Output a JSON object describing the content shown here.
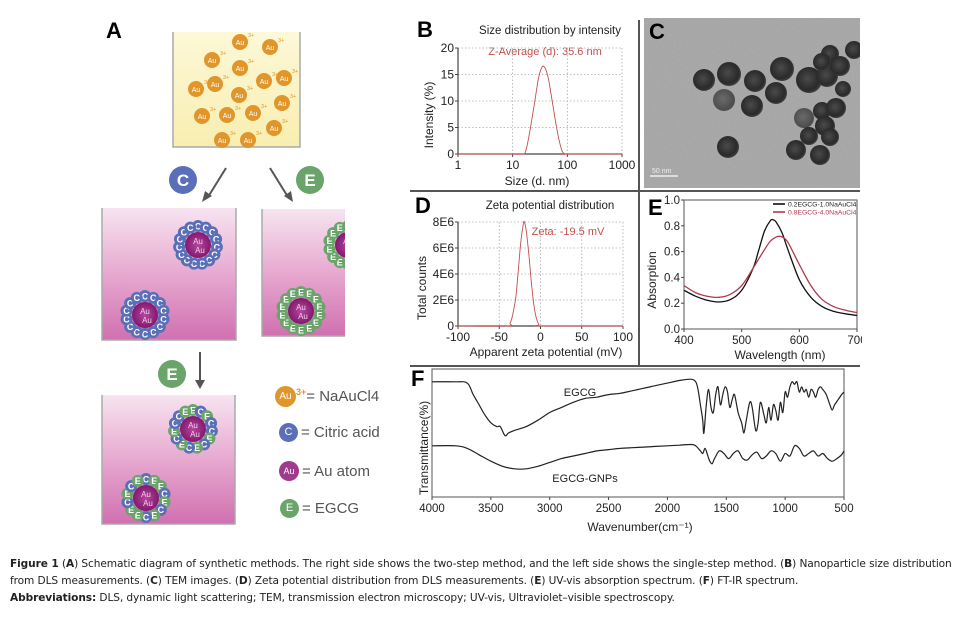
{
  "figure": {
    "panels": {
      "A": {
        "letter": "A",
        "title": "Schematic diagram of synthetic methods",
        "ion_label": "Au",
        "ion_charge": "3+",
        "reagent_C": "C",
        "reagent_E": "E",
        "atom_label": "Au",
        "legend": [
          {
            "symbol": "Au",
            "sup": "3+",
            "text": "= NaAuCl4",
            "color": "#e0962a"
          },
          {
            "symbol": "C",
            "sup": "",
            "text": "= Citric acid",
            "color": "#5a6fb8"
          },
          {
            "symbol": "Au",
            "sup": "",
            "text": "= Au atom",
            "color": "#a03a8e"
          },
          {
            "symbol": "E",
            "sup": "",
            "text": "= EGCG",
            "color": "#6aa46a"
          }
        ],
        "colors": {
          "gold_ion": "#e0962a",
          "citrate": "#5a6fb8",
          "egcg": "#6aa46a",
          "au_core": "#8e1f7a",
          "beaker_yellow": "#fbf5c8",
          "beaker_pink": "#d77cb8"
        }
      },
      "B": {
        "letter": "B"
      },
      "C": {
        "letter": "C",
        "scale_bar": "50 nm",
        "description": "TEM image of spherical gold nanoparticles"
      },
      "D": {
        "letter": "D"
      },
      "E": {
        "letter": "E"
      },
      "F": {
        "letter": "F"
      }
    }
  },
  "chart_data": [
    {
      "id": "B",
      "type": "line",
      "title": "Size distribution by intensity",
      "annotation": "Z-Average (d): 35.6 nm",
      "xlabel": "Size (d. nm)",
      "ylabel": "Intensity (%)",
      "xscale": "log",
      "xlim": [
        1,
        1000
      ],
      "ylim": [
        0,
        20
      ],
      "xticks": [
        "1",
        "10",
        "100",
        "1000"
      ],
      "yticks": [
        "0",
        "5",
        "10",
        "15",
        "20"
      ],
      "grid": true,
      "series": [
        {
          "name": "Intensity",
          "color": "#c0504d",
          "x": [
            1,
            10,
            15,
            17,
            20,
            25,
            30,
            35,
            40,
            45,
            50,
            60,
            70,
            80,
            90,
            100,
            1000
          ],
          "y": [
            0,
            0,
            0,
            0.3,
            3.5,
            9.5,
            14.5,
            16.5,
            16,
            14.2,
            11.5,
            6.5,
            2.8,
            0.6,
            0,
            0,
            0
          ]
        }
      ]
    },
    {
      "id": "D",
      "type": "line",
      "title": "Zeta potential distribution",
      "annotation": "Zeta: -19.5 mV",
      "xlabel": "Apparent zeta potential (mV)",
      "ylabel": "Total counts",
      "xlim": [
        -100,
        100
      ],
      "ylim": [
        0,
        8000000
      ],
      "xticks": [
        "-100",
        "-50",
        "0",
        "50",
        "100"
      ],
      "yticks": [
        "0",
        "2E6",
        "4E6",
        "6E6",
        "8E6"
      ],
      "grid": true,
      "series": [
        {
          "name": "Counts",
          "color": "#c0504d",
          "x": [
            -100,
            -40,
            -37,
            -34,
            -30,
            -27,
            -24,
            -21,
            -19.5,
            -17,
            -14,
            -11,
            -8,
            -5,
            -2,
            0,
            100
          ],
          "y": [
            0,
            0,
            200000,
            800000,
            2200000,
            4200000,
            6400000,
            7800000,
            8000000,
            7200000,
            5400000,
            3300000,
            1600000,
            600000,
            100000,
            0,
            0
          ]
        }
      ]
    },
    {
      "id": "E",
      "type": "line",
      "title": "",
      "xlabel": "Wavelength (nm)",
      "ylabel": "Absorption",
      "xlim": [
        400,
        700
      ],
      "ylim": [
        0,
        1.1
      ],
      "xticks": [
        "400",
        "500",
        "600",
        "700"
      ],
      "yticks": [
        "0.0",
        "0.2",
        "0.4",
        "0.6",
        "0.8",
        "1.0"
      ],
      "grid": false,
      "legend_position": "top-right",
      "series": [
        {
          "name": "0.2EGCG-1.0NaAuCl4",
          "color": "#111111",
          "x": [
            400,
            420,
            440,
            460,
            480,
            500,
            520,
            530,
            540,
            550,
            555,
            560,
            570,
            580,
            600,
            620,
            640,
            660,
            680,
            700
          ],
          "y": [
            0.33,
            0.28,
            0.245,
            0.23,
            0.25,
            0.33,
            0.52,
            0.68,
            0.84,
            0.925,
            0.93,
            0.91,
            0.82,
            0.68,
            0.42,
            0.27,
            0.19,
            0.15,
            0.13,
            0.115
          ]
        },
        {
          "name": "0.8EGCG-4.0NaAuCl4",
          "color": "#b0384c",
          "x": [
            400,
            420,
            440,
            460,
            480,
            500,
            520,
            540,
            550,
            560,
            565,
            570,
            580,
            600,
            620,
            640,
            660,
            680,
            700
          ],
          "y": [
            0.37,
            0.31,
            0.28,
            0.27,
            0.295,
            0.37,
            0.52,
            0.68,
            0.75,
            0.785,
            0.79,
            0.785,
            0.74,
            0.55,
            0.37,
            0.25,
            0.19,
            0.16,
            0.14
          ]
        }
      ]
    },
    {
      "id": "F",
      "type": "line",
      "title": "",
      "xlabel": "Wavenumber(cm⁻¹)",
      "ylabel": "Transmittance(%)",
      "xlim": [
        4000,
        500
      ],
      "ylim": [
        0,
        100
      ],
      "xticks": [
        "4000",
        "3500",
        "3000",
        "2500",
        "2000",
        "1500",
        "1000",
        "500"
      ],
      "yticks": [],
      "grid": false,
      "annotations": [
        "EGCG",
        "EGCG-GNPs"
      ],
      "series": [
        {
          "name": "EGCG",
          "color": "#222222",
          "x": [
            4000,
            3800,
            3700,
            3650,
            3600,
            3550,
            3500,
            3450,
            3420,
            3380,
            3350,
            3300,
            3200,
            3100,
            3000,
            2900,
            2800,
            2700,
            2600,
            2500,
            2400,
            2300,
            2200,
            2100,
            2000,
            1900,
            1800,
            1760,
            1740,
            1720,
            1700,
            1690,
            1670,
            1650,
            1630,
            1610,
            1590,
            1570,
            1550,
            1530,
            1510,
            1490,
            1470,
            1450,
            1430,
            1400,
            1370,
            1350,
            1330,
            1300,
            1280,
            1250,
            1230,
            1210,
            1180,
            1160,
            1140,
            1120,
            1100,
            1080,
            1060,
            1040,
            1020,
            1000,
            980,
            960,
            940,
            920,
            900,
            880,
            860,
            840,
            820,
            800,
            780,
            760,
            740,
            720,
            700,
            680,
            650,
            620,
            600,
            580,
            550,
            520,
            500
          ],
          "y": [
            90,
            90,
            89,
            80,
            72,
            64,
            58,
            55,
            55,
            48,
            50,
            52,
            55,
            60,
            66,
            70,
            74,
            77,
            78,
            80,
            81,
            83,
            85,
            87,
            89,
            91,
            92,
            90,
            84,
            72,
            60,
            50,
            72,
            84,
            70,
            66,
            80,
            86,
            72,
            80,
            86,
            82,
            70,
            76,
            80,
            66,
            58,
            50,
            60,
            74,
            70,
            52,
            58,
            74,
            64,
            58,
            70,
            60,
            72,
            68,
            60,
            74,
            66,
            82,
            78,
            86,
            90,
            88,
            90,
            82,
            86,
            82,
            84,
            78,
            84,
            82,
            78,
            84,
            86,
            84,
            80,
            72,
            68,
            72,
            76,
            80,
            82
          ]
        },
        {
          "name": "EGCG-GNPs",
          "color": "#222222",
          "x": [
            4000,
            3800,
            3700,
            3600,
            3500,
            3400,
            3300,
            3200,
            3100,
            3000,
            2900,
            2800,
            2700,
            2600,
            2500,
            2400,
            2300,
            2200,
            2100,
            2000,
            1900,
            1800,
            1760,
            1720,
            1700,
            1680,
            1660,
            1640,
            1620,
            1600,
            1560,
            1520,
            1480,
            1440,
            1400,
            1360,
            1320,
            1280,
            1240,
            1200,
            1160,
            1120,
            1080,
            1040,
            1000,
            960,
            920,
            880,
            840,
            800,
            760,
            720,
            680,
            640,
            600,
            560,
            520,
            500
          ],
          "y": [
            40,
            40,
            38,
            33,
            28,
            24,
            22,
            22,
            24,
            27,
            30,
            32,
            34,
            36,
            37,
            38,
            38.5,
            39,
            39.5,
            40,
            40.5,
            41,
            40,
            36,
            34,
            38,
            33,
            28,
            26,
            30,
            36,
            34,
            30,
            34,
            36,
            30,
            29,
            33,
            35,
            30,
            32,
            36,
            34,
            28,
            34,
            32,
            40,
            38,
            32,
            34,
            36,
            32,
            34,
            30,
            28,
            30,
            33,
            36
          ]
        }
      ]
    }
  ],
  "caption": {
    "figure_label": "Figure 1",
    "parts": [
      {
        "bold": "A",
        "text": " Schematic diagram of synthetic methods. The right side shows the two-step method, and the left side shows the single-step method. "
      },
      {
        "bold": "B",
        "text": " Nanoparticle size distribution from DLS measurements. "
      },
      {
        "bold": "C",
        "text": " TEM images. "
      },
      {
        "bold": "D",
        "text": " Zeta potential distribution from DLS measurements. "
      },
      {
        "bold": "E",
        "text": " UV-vis absorption spectrum. "
      },
      {
        "bold": "F",
        "text": " FT-IR spectrum."
      }
    ],
    "abbreviations_label": "Abbreviations:",
    "abbreviations_text": " DLS, dynamic light scattering; TEM, transmission electron microscopy; UV-vis, Ultraviolet–visible spectroscopy."
  }
}
